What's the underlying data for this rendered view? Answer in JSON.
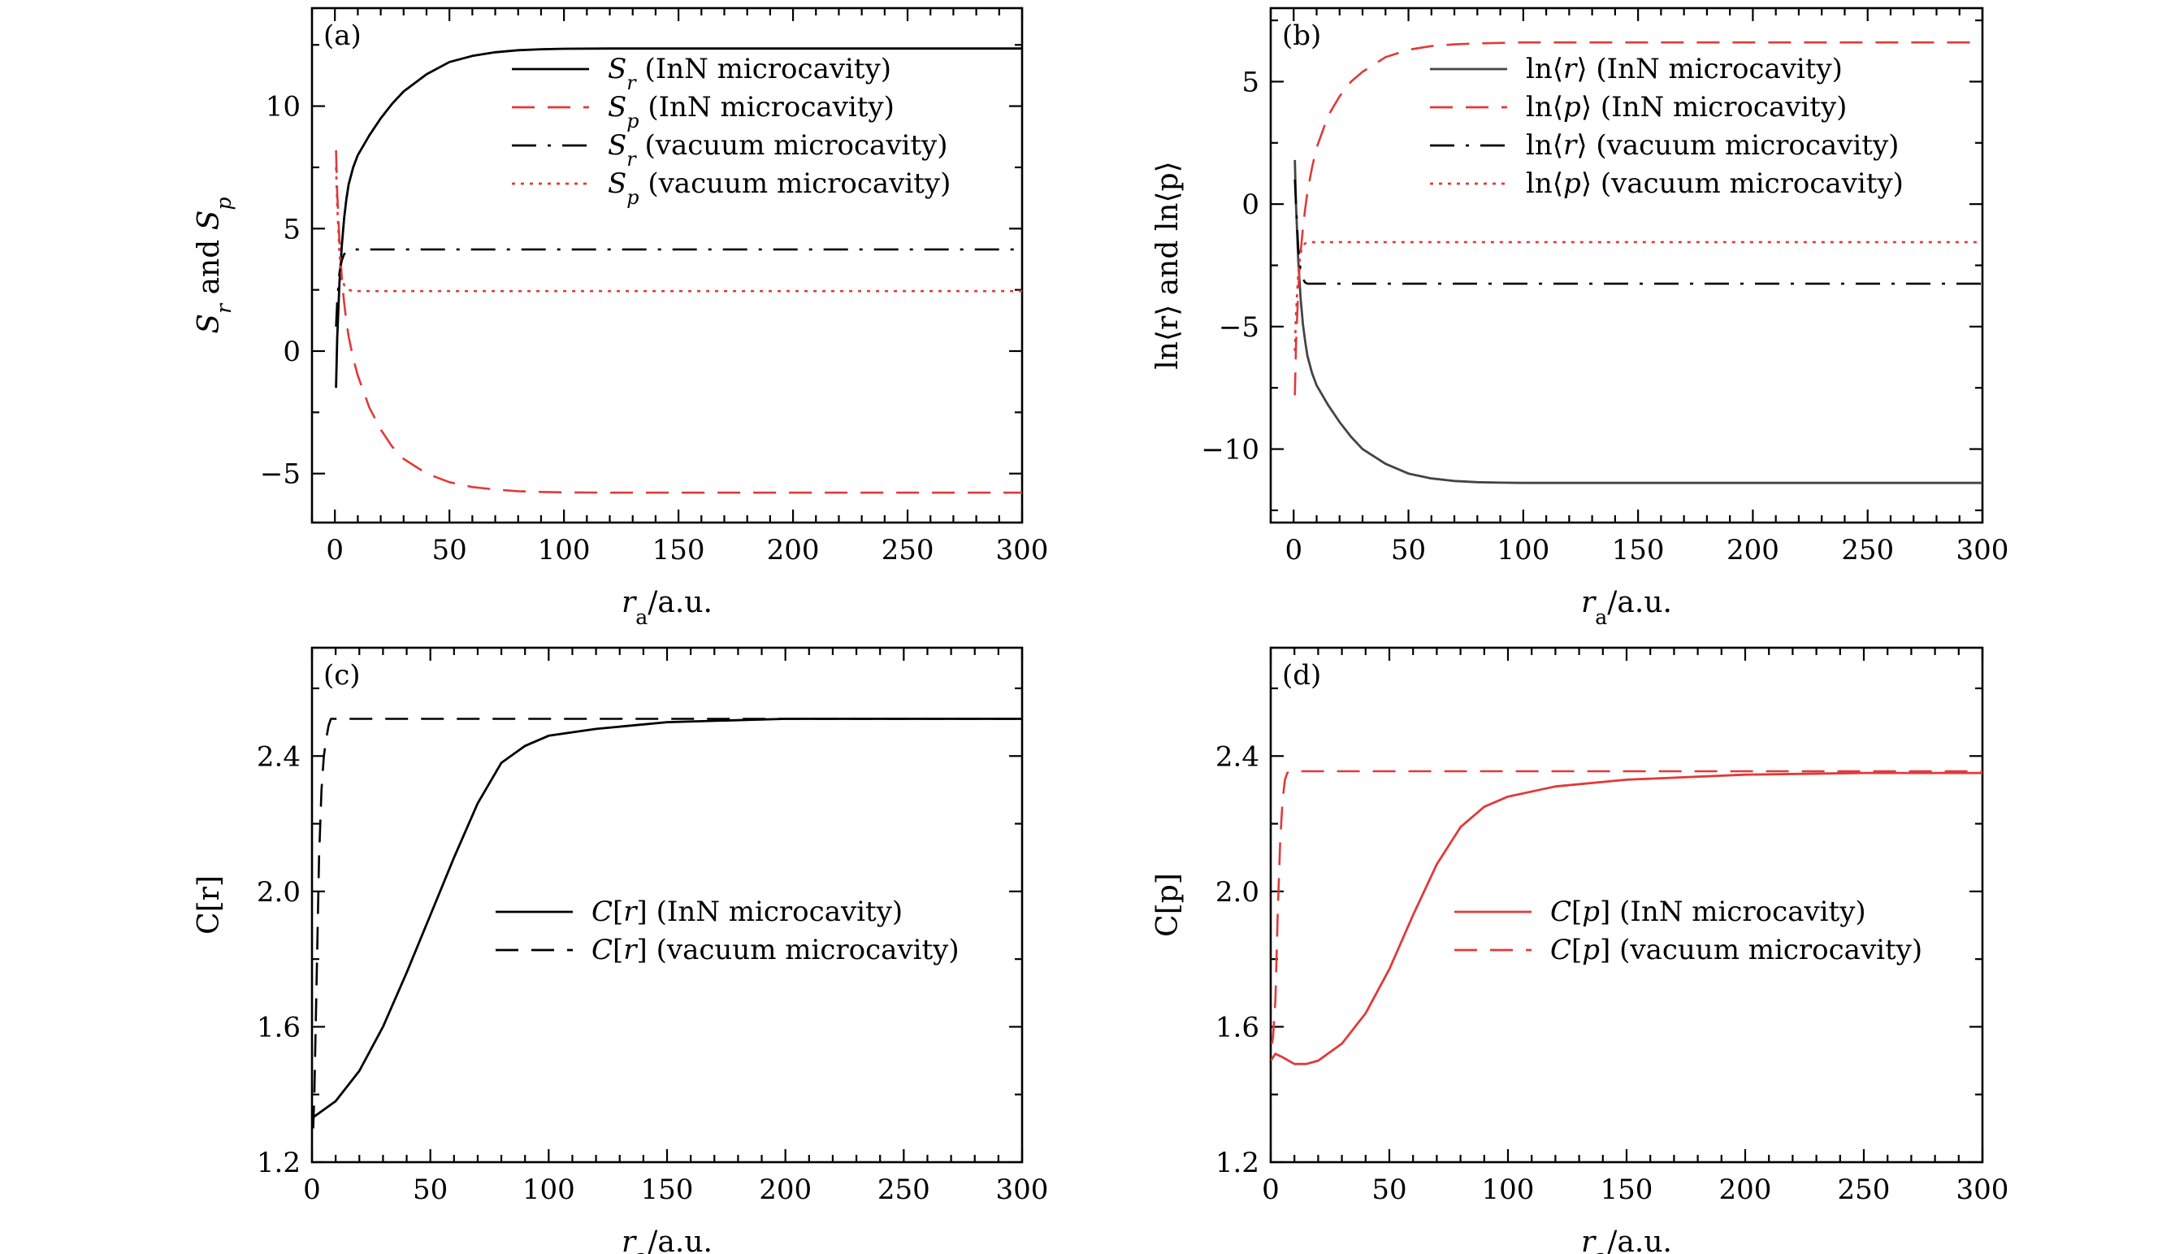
{
  "figure": {
    "panels": [
      {
        "panel_label": "(a)",
        "xlabel": "r_a/a.u.",
        "ylabel": "S_r and S_p",
        "legend_position": "top-right"
      },
      {
        "panel_label": "(b)",
        "xlabel": "r_a/a.u.",
        "ylabel": "ln⟨r⟩ and ln⟨p⟩",
        "legend_position": "top-right"
      },
      {
        "panel_label": "(c)",
        "xlabel": "r_a/a.u.",
        "ylabel": "C[r]",
        "legend_position": "center-right"
      },
      {
        "panel_label": "(d)",
        "xlabel": "r_a/a.u.",
        "ylabel": "C[p]",
        "legend_position": "center-right"
      }
    ]
  },
  "colors": {
    "black": "#000000",
    "red": "#e03a3a",
    "dark_gray": "#444444"
  },
  "chart_data": [
    {
      "type": "line",
      "panel_label": "(a)",
      "title": "",
      "xlabel": "r_a/a.u.",
      "ylabel": "S_r and S_p",
      "xlim": [
        -10,
        300
      ],
      "ylim": [
        -7,
        14
      ],
      "xticks": [
        0,
        50,
        100,
        150,
        200,
        250,
        300
      ],
      "yticks": [
        -5,
        0,
        5,
        10
      ],
      "grid": false,
      "legend_position": "top-right",
      "series": [
        {
          "name": "S_r (InN microcavity)",
          "legend_label": "S",
          "legend_sub": "r",
          "legend_suffix": " (InN microcavity)",
          "color": "#000000",
          "style": "solid",
          "x": [
            0.5,
            1,
            2,
            3,
            4,
            5,
            6,
            8,
            10,
            15,
            20,
            25,
            30,
            40,
            50,
            60,
            70,
            80,
            90,
            100,
            120,
            150,
            200,
            250,
            300
          ],
          "y": [
            -1.5,
            0.5,
            2.8,
            4.3,
            5.4,
            6.2,
            6.8,
            7.5,
            8.0,
            8.8,
            9.5,
            10.1,
            10.6,
            11.3,
            11.8,
            12.05,
            12.2,
            12.28,
            12.32,
            12.34,
            12.35,
            12.35,
            12.35,
            12.35,
            12.35
          ]
        },
        {
          "name": "S_p (InN microcavity)",
          "legend_label": "S",
          "legend_sub": "p",
          "legend_suffix": " (InN microcavity)",
          "color": "#e03a3a",
          "style": "dashed",
          "x": [
            0.5,
            1,
            2,
            3,
            4,
            5,
            6,
            8,
            10,
            15,
            20,
            25,
            30,
            40,
            50,
            60,
            70,
            80,
            90,
            100,
            120,
            150,
            200,
            250,
            300
          ],
          "y": [
            8.2,
            6.5,
            4.5,
            3.0,
            2.0,
            1.2,
            0.6,
            -0.3,
            -1.0,
            -2.3,
            -3.2,
            -3.9,
            -4.4,
            -5.0,
            -5.35,
            -5.55,
            -5.65,
            -5.72,
            -5.75,
            -5.77,
            -5.78,
            -5.78,
            -5.78,
            -5.78,
            -5.78
          ]
        },
        {
          "name": "S_r (vacuum microcavity)",
          "legend_label": "S",
          "legend_sub": "r",
          "legend_suffix": " (vacuum microcavity)",
          "color": "#000000",
          "style": "dashdot",
          "x": [
            0.5,
            1,
            2,
            3,
            4,
            5,
            6,
            8,
            10,
            20,
            50,
            100,
            200,
            300
          ],
          "y": [
            1.0,
            2.0,
            3.2,
            3.7,
            3.95,
            4.05,
            4.1,
            4.15,
            4.15,
            4.15,
            4.15,
            4.15,
            4.15,
            4.15
          ]
        },
        {
          "name": "S_p (vacuum microcavity)",
          "legend_label": "S",
          "legend_sub": "p",
          "legend_suffix": " (vacuum microcavity)",
          "color": "#e03a3a",
          "style": "dotted",
          "x": [
            0.5,
            1,
            2,
            3,
            4,
            5,
            6,
            8,
            10,
            20,
            50,
            100,
            200,
            300
          ],
          "y": [
            7.5,
            6.0,
            4.0,
            3.0,
            2.7,
            2.55,
            2.5,
            2.45,
            2.45,
            2.45,
            2.45,
            2.45,
            2.45,
            2.45
          ]
        }
      ]
    },
    {
      "type": "line",
      "panel_label": "(b)",
      "title": "",
      "xlabel": "r_a/a.u.",
      "ylabel": "ln⟨r⟩ and ln⟨p⟩",
      "xlim": [
        -10,
        300
      ],
      "ylim": [
        -13,
        8
      ],
      "xticks": [
        0,
        50,
        100,
        150,
        200,
        250,
        300
      ],
      "yticks": [
        -10,
        -5,
        0,
        5
      ],
      "grid": false,
      "legend_position": "top-right",
      "series": [
        {
          "name": "ln⟨r⟩ (InN microcavity)",
          "legend_label": "ln⟨r⟩",
          "legend_sub": "",
          "legend_suffix": " (InN microcavity)",
          "color": "#444444",
          "style": "solid",
          "x": [
            0.5,
            1,
            2,
            3,
            4,
            5,
            6,
            8,
            10,
            15,
            20,
            25,
            30,
            40,
            50,
            60,
            70,
            80,
            90,
            100,
            120,
            150,
            200,
            250,
            300
          ],
          "y": [
            1.8,
            0.0,
            -2.3,
            -3.8,
            -4.9,
            -5.6,
            -6.2,
            -6.9,
            -7.4,
            -8.2,
            -8.9,
            -9.5,
            -10.0,
            -10.6,
            -11.0,
            -11.2,
            -11.3,
            -11.35,
            -11.37,
            -11.38,
            -11.38,
            -11.38,
            -11.38,
            -11.38,
            -11.38
          ]
        },
        {
          "name": "ln⟨p⟩ (InN microcavity)",
          "legend_label": "ln⟨p⟩",
          "legend_sub": "",
          "legend_suffix": " (InN microcavity)",
          "color": "#e03a3a",
          "style": "dashed",
          "x": [
            0.5,
            1,
            2,
            3,
            4,
            5,
            6,
            8,
            10,
            15,
            20,
            25,
            30,
            40,
            50,
            60,
            70,
            80,
            90,
            100,
            120,
            150,
            200,
            250,
            300
          ],
          "y": [
            -7.8,
            -5.8,
            -3.5,
            -2.0,
            -1.0,
            -0.2,
            0.5,
            1.5,
            2.3,
            3.6,
            4.4,
            5.0,
            5.4,
            6.0,
            6.3,
            6.45,
            6.52,
            6.56,
            6.58,
            6.6,
            6.6,
            6.6,
            6.6,
            6.6,
            6.6
          ]
        },
        {
          "name": "ln⟨r⟩ (vacuum microcavity)",
          "legend_label": "ln⟨r⟩",
          "legend_sub": "",
          "legend_suffix": " (vacuum microcavity)",
          "color": "#000000",
          "style": "dashdot",
          "x": [
            0.5,
            1,
            2,
            3,
            4,
            5,
            6,
            8,
            10,
            20,
            50,
            100,
            200,
            300
          ],
          "y": [
            1.0,
            0.0,
            -1.8,
            -2.7,
            -3.05,
            -3.2,
            -3.25,
            -3.25,
            -3.25,
            -3.25,
            -3.25,
            -3.25,
            -3.25,
            -3.25
          ]
        },
        {
          "name": "ln⟨p⟩ (vacuum microcavity)",
          "legend_label": "ln⟨p⟩",
          "legend_sub": "",
          "legend_suffix": " (vacuum microcavity)",
          "color": "#e03a3a",
          "style": "dotted",
          "x": [
            0.5,
            1,
            2,
            3,
            4,
            5,
            6,
            8,
            10,
            20,
            50,
            100,
            200,
            300
          ],
          "y": [
            -6.0,
            -4.5,
            -2.8,
            -2.0,
            -1.7,
            -1.6,
            -1.58,
            -1.55,
            -1.55,
            -1.55,
            -1.55,
            -1.55,
            -1.55,
            -1.55
          ]
        }
      ]
    },
    {
      "type": "line",
      "panel_label": "(c)",
      "title": "",
      "xlabel": "r_a/a.u.",
      "ylabel": "C[r]",
      "xlim": [
        0,
        300
      ],
      "ylim": [
        1.2,
        2.72
      ],
      "xticks": [
        0,
        50,
        100,
        150,
        200,
        250,
        300
      ],
      "yticks": [
        1.2,
        1.6,
        2.0,
        2.4
      ],
      "grid": false,
      "legend_position": "center-right",
      "series": [
        {
          "name": "C[r] (InN microcavity)",
          "legend_label": "C[r]",
          "legend_sub": "",
          "legend_suffix": " (InN microcavity)",
          "color": "#000000",
          "style": "solid",
          "x": [
            0,
            10,
            20,
            30,
            40,
            50,
            60,
            70,
            80,
            90,
            100,
            120,
            150,
            200,
            250,
            300
          ],
          "y": [
            1.33,
            1.38,
            1.47,
            1.6,
            1.76,
            1.93,
            2.1,
            2.26,
            2.38,
            2.43,
            2.46,
            2.48,
            2.5,
            2.51,
            2.51,
            2.51
          ]
        },
        {
          "name": "C[r] (vacuum microcavity)",
          "legend_label": "C[r]",
          "legend_sub": "",
          "legend_suffix": " (vacuum microcavity)",
          "color": "#000000",
          "style": "dashed",
          "x": [
            0.5,
            1,
            2,
            3,
            4,
            5,
            6,
            7,
            8,
            10,
            20,
            50,
            100,
            200,
            300
          ],
          "y": [
            1.3,
            1.4,
            1.75,
            2.1,
            2.3,
            2.4,
            2.45,
            2.49,
            2.51,
            2.51,
            2.51,
            2.51,
            2.51,
            2.51,
            2.51
          ]
        }
      ]
    },
    {
      "type": "line",
      "panel_label": "(d)",
      "title": "",
      "xlabel": "r_a/a.u.",
      "ylabel": "C[p]",
      "xlim": [
        0,
        300
      ],
      "ylim": [
        1.2,
        2.72
      ],
      "xticks": [
        0,
        50,
        100,
        150,
        200,
        250,
        300
      ],
      "yticks": [
        1.2,
        1.6,
        2.0,
        2.4
      ],
      "grid": false,
      "legend_position": "center-right",
      "series": [
        {
          "name": "C[p] (InN microcavity)",
          "legend_label": "C[p]",
          "legend_sub": "",
          "legend_suffix": " (InN microcavity)",
          "color": "#e03a3a",
          "style": "solid",
          "x": [
            0,
            2,
            5,
            10,
            15,
            20,
            30,
            40,
            50,
            60,
            70,
            80,
            90,
            100,
            120,
            150,
            200,
            250,
            300
          ],
          "y": [
            1.5,
            1.52,
            1.51,
            1.49,
            1.49,
            1.5,
            1.55,
            1.64,
            1.77,
            1.93,
            2.08,
            2.19,
            2.25,
            2.28,
            2.31,
            2.33,
            2.345,
            2.35,
            2.35
          ]
        },
        {
          "name": "C[p] (vacuum microcavity)",
          "legend_label": "C[p]",
          "legend_sub": "",
          "legend_suffix": " (vacuum microcavity)",
          "color": "#e03a3a",
          "style": "dashed",
          "x": [
            0.5,
            1,
            2,
            3,
            4,
            5,
            6,
            7,
            8,
            10,
            20,
            50,
            100,
            200,
            300
          ],
          "y": [
            1.55,
            1.57,
            1.68,
            1.95,
            2.15,
            2.27,
            2.33,
            2.35,
            2.355,
            2.355,
            2.355,
            2.355,
            2.355,
            2.355,
            2.355
          ]
        }
      ]
    }
  ]
}
